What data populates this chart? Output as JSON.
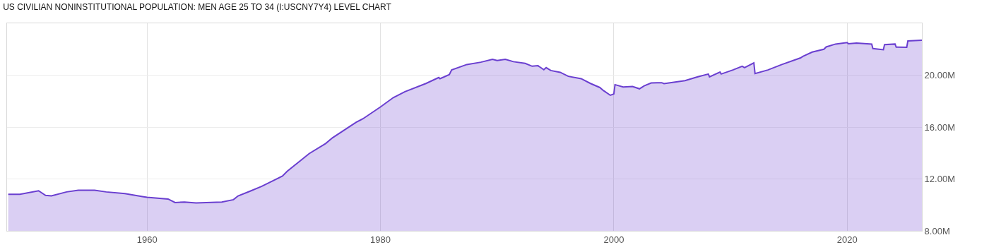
{
  "chart_data": {
    "type": "area",
    "title": "US CIVILIAN NONINSTITUTIONAL POPULATION: MEN AGE 25 TO 34 (I:USCNY7Y4) LEVEL CHART",
    "xlim": [
      1948.0,
      2026.4
    ],
    "xticks": [
      1960,
      1980,
      2000,
      2020
    ],
    "ylim": [
      8,
      24
    ],
    "yticks": [
      {
        "value": 8,
        "label": "8.00M"
      },
      {
        "value": 12,
        "label": "12.00M"
      },
      {
        "value": 16,
        "label": "16.00M"
      },
      {
        "value": 20,
        "label": "20.00M"
      }
    ],
    "grid": true,
    "series": [
      {
        "color": "#6a3fd0",
        "x": [
          1948.1,
          1949.1,
          1950.7,
          1951.3,
          1951.8,
          1953.1,
          1954.1,
          1955.5,
          1956.5,
          1958.1,
          1959.6,
          1960.0,
          1961.8,
          1962.4,
          1963.2,
          1964.2,
          1966.4,
          1967.4,
          1967.8,
          1968.8,
          1969.8,
          1971.6,
          1972.0,
          1973.9,
          1975.3,
          1975.9,
          1977.9,
          1978.5,
          1980.0,
          1981.1,
          1982.1,
          1983.9,
          1985.0,
          1985.1,
          1985.9,
          1986.1,
          1987.4,
          1988.6,
          1989.6,
          1990.0,
          1990.7,
          1991.4,
          1992.4,
          1993.0,
          1993.5,
          1994.0,
          1994.2,
          1994.6,
          1995.4,
          1996.1,
          1997.2,
          1998.0,
          1998.8,
          1999.1,
          1999.7,
          2000.0,
          2000.1,
          2000.8,
          2001.6,
          2002.2,
          2002.6,
          2003.2,
          2003.7,
          2004.1,
          2004.3,
          2006.1,
          2007.1,
          2008.1,
          2008.2,
          2009.1,
          2009.2,
          2010.2,
          2011.0,
          2011.2,
          2012.0,
          2012.1,
          2013.2,
          2014.4,
          2016.0,
          2016.2,
          2017.0,
          2018.0,
          2018.2,
          2019.0,
          2020.0,
          2020.1,
          2020.8,
          2022.1,
          2022.2,
          2023.1,
          2023.2,
          2024.1,
          2024.2,
          2025.1,
          2025.2,
          2026.4
        ],
        "values": [
          10.82,
          10.82,
          11.09,
          10.73,
          10.69,
          11.0,
          11.13,
          11.13,
          11.0,
          10.87,
          10.64,
          10.58,
          10.45,
          10.18,
          10.22,
          10.15,
          10.22,
          10.4,
          10.69,
          11.05,
          11.42,
          12.22,
          12.58,
          13.96,
          14.73,
          15.18,
          16.36,
          16.64,
          17.55,
          18.27,
          18.73,
          19.36,
          19.82,
          19.73,
          20.04,
          20.4,
          20.82,
          21.0,
          21.22,
          21.13,
          21.22,
          21.04,
          20.91,
          20.69,
          20.73,
          20.42,
          20.58,
          20.36,
          20.22,
          19.91,
          19.73,
          19.36,
          19.05,
          18.82,
          18.45,
          18.55,
          19.27,
          19.09,
          19.13,
          18.95,
          19.18,
          19.4,
          19.42,
          19.42,
          19.35,
          19.58,
          19.85,
          20.09,
          19.87,
          20.24,
          20.09,
          20.4,
          20.69,
          20.58,
          20.95,
          20.13,
          20.4,
          20.82,
          21.33,
          21.45,
          21.78,
          22.0,
          22.18,
          22.4,
          22.51,
          22.42,
          22.47,
          22.4,
          22.05,
          21.96,
          22.36,
          22.4,
          22.16,
          22.15,
          22.64,
          22.69
        ]
      }
    ]
  }
}
